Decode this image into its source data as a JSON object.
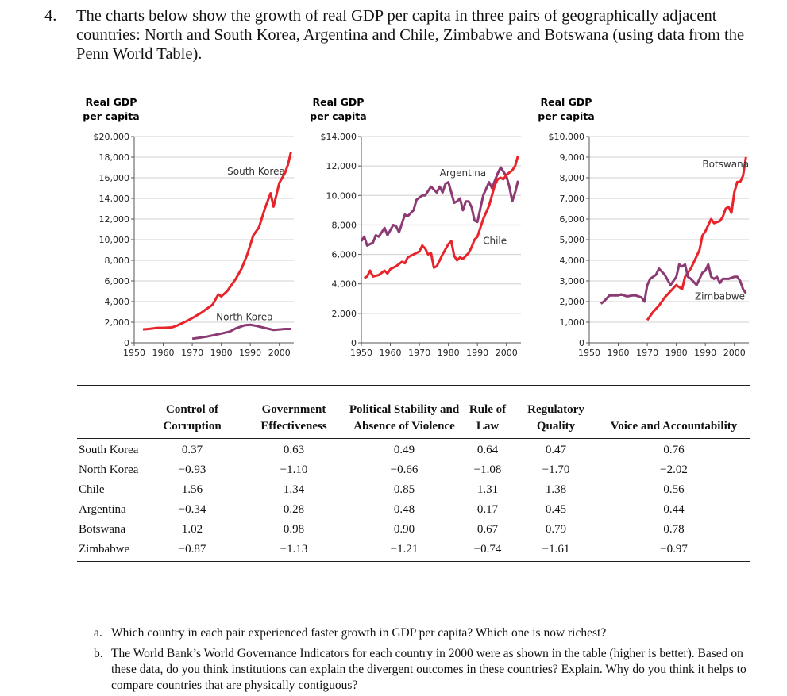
{
  "question": {
    "number": "4.",
    "text": "The charts below show the growth of real GDP per capita in three pairs of geographically adjacent countries: North and South Korea, Argentina and Chile, Zimbabwe and Botswana (using data from the Penn World Table)."
  },
  "colors": {
    "red": "#e8232a",
    "purple": "#8c3a73",
    "grid": "#d9d9d9"
  },
  "chart_data": [
    {
      "type": "line",
      "ylabel": "Real GDP per capita",
      "ylim": [
        0,
        20000
      ],
      "yticks": [
        "0",
        "2,000",
        "4,000",
        "6,000",
        "8,000",
        "10,000",
        "12,000",
        "14,000",
        "16,000",
        "18,000",
        "$20,000"
      ],
      "xticks": [
        "1950",
        "1960",
        "1970",
        "1980",
        "1990",
        "2000"
      ],
      "grid": true,
      "series": [
        {
          "name": "South Korea",
          "color": "red",
          "x": [
            1953,
            1955,
            1958,
            1960,
            1963,
            1965,
            1968,
            1970,
            1973,
            1975,
            1977,
            1979,
            1980,
            1982,
            1985,
            1987,
            1989,
            1991,
            1993,
            1995,
            1997,
            1998,
            2000,
            2002,
            2003,
            2004
          ],
          "y": [
            1300,
            1350,
            1450,
            1450,
            1500,
            1700,
            2100,
            2400,
            2900,
            3300,
            3700,
            4700,
            4500,
            5000,
            6200,
            7200,
            8600,
            10400,
            11200,
            13000,
            14500,
            13200,
            15500,
            16500,
            17300,
            18500
          ]
        },
        {
          "name": "North Korea",
          "color": "purple",
          "x": [
            1970,
            1975,
            1980,
            1983,
            1985,
            1988,
            1990,
            1992,
            1995,
            1998,
            2000,
            2002,
            2004
          ],
          "y": [
            400,
            600,
            900,
            1100,
            1400,
            1700,
            1750,
            1650,
            1450,
            1250,
            1300,
            1350,
            1350
          ]
        }
      ]
    },
    {
      "type": "line",
      "ylabel": "Real GDP per capita",
      "ylim": [
        0,
        14000
      ],
      "yticks": [
        "0",
        "2,000",
        "4,000",
        "6,000",
        "8,000",
        "10,000",
        "12,000",
        "$14,000"
      ],
      "xticks": [
        "1950",
        "1960",
        "1970",
        "1980",
        "1990",
        "2000"
      ],
      "grid": true,
      "series": [
        {
          "name": "Argentina",
          "color": "purple",
          "x": [
            1950,
            1951,
            1952,
            1954,
            1955,
            1956,
            1958,
            1959,
            1961,
            1962,
            1963,
            1965,
            1966,
            1968,
            1969,
            1971,
            1972,
            1974,
            1976,
            1977,
            1978,
            1979,
            1980,
            1982,
            1983,
            1984,
            1985,
            1986,
            1987,
            1988,
            1989,
            1990,
            1992,
            1994,
            1995,
            1997,
            1998,
            2000,
            2001,
            2002,
            2003,
            2004
          ],
          "y": [
            6900,
            7200,
            6600,
            6800,
            7300,
            7200,
            7800,
            7300,
            8000,
            7900,
            7500,
            8700,
            8600,
            9000,
            9700,
            10000,
            10000,
            10600,
            10200,
            10600,
            10200,
            10800,
            10900,
            9500,
            9600,
            9800,
            9000,
            9600,
            9600,
            9200,
            8300,
            8200,
            10000,
            10900,
            10500,
            11500,
            11900,
            11300,
            10600,
            9600,
            10200,
            11000
          ]
        },
        {
          "name": "Chile",
          "color": "red",
          "x": [
            1951,
            1952,
            1953,
            1954,
            1956,
            1958,
            1959,
            1960,
            1962,
            1964,
            1965,
            1966,
            1968,
            1970,
            1971,
            1972,
            1973,
            1974,
            1975,
            1976,
            1978,
            1980,
            1981,
            1982,
            1983,
            1984,
            1985,
            1987,
            1988,
            1989,
            1990,
            1992,
            1994,
            1996,
            1997,
            1998,
            1999,
            2000,
            2002,
            2003,
            2004
          ],
          "y": [
            4400,
            4500,
            4900,
            4500,
            4600,
            4900,
            4700,
            5000,
            5200,
            5500,
            5400,
            5800,
            6000,
            6200,
            6600,
            6400,
            6000,
            6100,
            5100,
            5200,
            6000,
            6700,
            6900,
            5900,
            5600,
            5800,
            5700,
            6100,
            6500,
            7000,
            7200,
            8400,
            9300,
            10700,
            11100,
            11200,
            11100,
            11400,
            11700,
            12000,
            12700
          ]
        }
      ]
    },
    {
      "type": "line",
      "ylabel": "Real GDP per capita",
      "ylim": [
        0,
        10000
      ],
      "yticks": [
        "0",
        "1,000",
        "2,000",
        "3,000",
        "4,000",
        "5,000",
        "6,000",
        "7,000",
        "8,000",
        "9,000",
        "$10,000"
      ],
      "xticks": [
        "1950",
        "1960",
        "1970",
        "1980",
        "1990",
        "2000"
      ],
      "grid": true,
      "series": [
        {
          "name": "Botswana",
          "color": "red",
          "x": [
            1970,
            1972,
            1974,
            1976,
            1978,
            1980,
            1981,
            1982,
            1983,
            1985,
            1986,
            1988,
            1989,
            1990,
            1992,
            1993,
            1995,
            1996,
            1997,
            1998,
            1999,
            2000,
            2001,
            2002,
            2003,
            2004
          ],
          "y": [
            1100,
            1500,
            1800,
            2200,
            2500,
            2800,
            2700,
            2600,
            3200,
            3600,
            3900,
            4500,
            5200,
            5400,
            6000,
            5800,
            5900,
            6100,
            6500,
            6600,
            6300,
            7300,
            7800,
            7800,
            8100,
            9000
          ]
        },
        {
          "name": "Zimbabwe",
          "color": "purple",
          "x": [
            1954,
            1955,
            1957,
            1960,
            1961,
            1963,
            1965,
            1966,
            1968,
            1969,
            1970,
            1971,
            1973,
            1974,
            1976,
            1978,
            1980,
            1981,
            1982,
            1983,
            1984,
            1985,
            1987,
            1989,
            1990,
            1991,
            1992,
            1993,
            1994,
            1995,
            1996,
            1998,
            2000,
            2001,
            2002,
            2003,
            2004
          ],
          "y": [
            1900,
            2000,
            2300,
            2300,
            2350,
            2250,
            2300,
            2300,
            2200,
            2000,
            2800,
            3100,
            3300,
            3600,
            3300,
            2800,
            3200,
            3800,
            3700,
            3800,
            3200,
            3100,
            2800,
            3400,
            3500,
            3800,
            3200,
            3100,
            3200,
            2900,
            3100,
            3100,
            3200,
            3200,
            3000,
            2600,
            2400
          ]
        }
      ]
    }
  ],
  "table": {
    "headers": [
      "Control of Corruption",
      "Government Effectiveness",
      "Political Stability and Absence of Violence",
      "Rule of Law",
      "Regulatory Quality",
      "Voice and Accountability"
    ],
    "rows": [
      {
        "country": "South Korea",
        "values": [
          "0.37",
          "0.63",
          "0.49",
          "0.64",
          "0.47",
          "0.76"
        ]
      },
      {
        "country": "North Korea",
        "values": [
          "−0.93",
          "−1.10",
          "−0.66",
          "−1.08",
          "−1.70",
          "−2.02"
        ]
      },
      {
        "country": "Chile",
        "values": [
          "1.56",
          "1.34",
          "0.85",
          "1.31",
          "1.38",
          "0.56"
        ]
      },
      {
        "country": "Argentina",
        "values": [
          "−0.34",
          "0.28",
          "0.48",
          "0.17",
          "0.45",
          "0.44"
        ]
      },
      {
        "country": "Botswana",
        "values": [
          "1.02",
          "0.98",
          "0.90",
          "0.67",
          "0.79",
          "0.78"
        ]
      },
      {
        "country": "Zimbabwe",
        "values": [
          "−0.87",
          "−1.13",
          "−1.21",
          "−0.74",
          "−1.61",
          "−0.97"
        ]
      }
    ]
  },
  "parts": [
    {
      "label": "a.",
      "text": "Which country in each pair experienced faster growth in GDP per capita? Which one is now richest?"
    },
    {
      "label": "b.",
      "text": "The World Bank’s World Governance Indicators for each country in 2000 were as shown in the table (higher is better). Based on these data, do you think institutions can explain the divergent outcomes in these countries? Explain. Why do you think it helps to compare countries that are physically contiguous?"
    }
  ]
}
